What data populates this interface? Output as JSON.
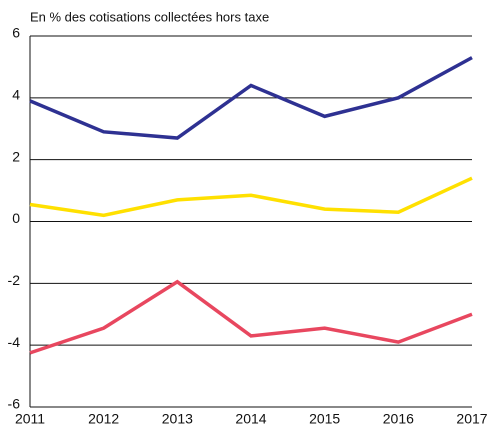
{
  "chart_data": {
    "type": "line",
    "title": "En % des cotisations collectées hors taxe",
    "x": [
      2011,
      2012,
      2013,
      2014,
      2015,
      2016,
      2017
    ],
    "xlim": [
      2011,
      2017
    ],
    "xticks": [
      2011,
      2012,
      2013,
      2014,
      2015,
      2016,
      2017
    ],
    "ylim": [
      -6,
      6
    ],
    "yticks": [
      -6,
      -4,
      -2,
      0,
      2,
      4,
      6
    ],
    "grid": true,
    "series": [
      {
        "color": "#2e3192",
        "values": [
          3.9,
          2.9,
          2.7,
          4.4,
          3.4,
          4.0,
          5.3
        ]
      },
      {
        "color": "#ffe000",
        "values": [
          0.55,
          0.2,
          0.7,
          0.85,
          0.4,
          0.3,
          1.4
        ]
      },
      {
        "color": "#e8475f",
        "values": [
          -4.25,
          -3.45,
          -1.95,
          -3.7,
          -3.45,
          -3.9,
          -3.0
        ]
      }
    ]
  }
}
